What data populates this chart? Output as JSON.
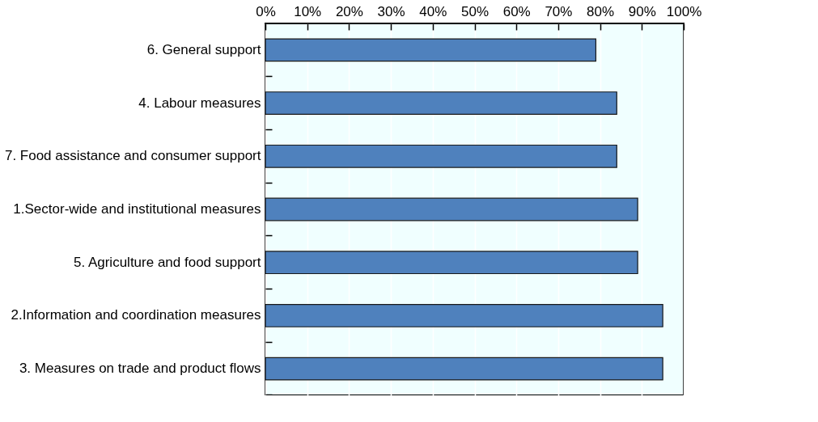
{
  "chart_data": {
    "type": "bar",
    "orientation": "horizontal",
    "categories": [
      "6. General  support",
      "4. Labour measures",
      "7. Food assistance and consumer support",
      "1.Sector-wide and institutional measures",
      "5. Agriculture and food support",
      "2.Information and coordination measures",
      "3. Measures on trade and product flows"
    ],
    "values": [
      79,
      84,
      84,
      89,
      89,
      95,
      95
    ],
    "color": "#4f81bd",
    "xlim": [
      0,
      100
    ],
    "xticks": [
      {
        "value": 0,
        "label": "0%"
      },
      {
        "value": 10,
        "label": "10%"
      },
      {
        "value": 20,
        "label": "20%"
      },
      {
        "value": 30,
        "label": "30%"
      },
      {
        "value": 40,
        "label": "40%"
      },
      {
        "value": 50,
        "label": "50%"
      },
      {
        "value": 60,
        "label": "60%"
      },
      {
        "value": 70,
        "label": "70%"
      },
      {
        "value": 80,
        "label": "80%"
      },
      {
        "value": 90,
        "label": "90%"
      },
      {
        "value": 100,
        "label": "100%"
      }
    ],
    "grid": true
  }
}
